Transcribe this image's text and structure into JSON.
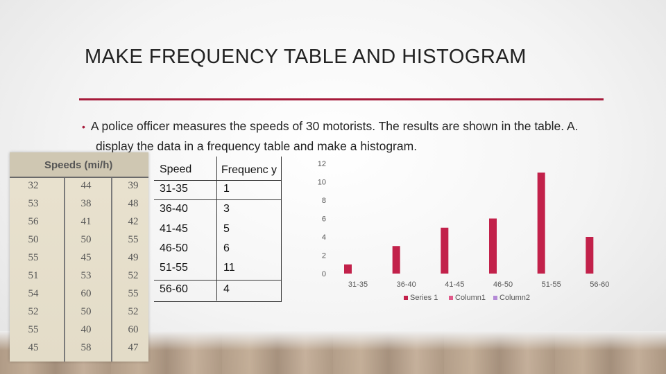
{
  "slide": {
    "title": "MAKE FREQUENCY TABLE AND HISTOGRAM",
    "bullet": "A police officer measures the speeds of 30 motorists.  The results are shown in the table.  A. display the data in a frequency table and make a histogram.",
    "accent_color": "#a61a3a"
  },
  "photo_table": {
    "header": "Speeds (mi/h)",
    "rows": [
      [
        "32",
        "44",
        "39"
      ],
      [
        "53",
        "38",
        "48"
      ],
      [
        "56",
        "41",
        "42"
      ],
      [
        "50",
        "50",
        "55"
      ],
      [
        "55",
        "45",
        "49"
      ],
      [
        "51",
        "53",
        "52"
      ],
      [
        "54",
        "60",
        "55"
      ],
      [
        "52",
        "50",
        "52"
      ],
      [
        "55",
        "40",
        "60"
      ],
      [
        "45",
        "58",
        "47"
      ]
    ]
  },
  "frequency_table": {
    "headers": [
      "Speed",
      "Frequenc y"
    ],
    "rows": [
      [
        "31-35",
        "1"
      ],
      [
        "36-40",
        "3"
      ],
      [
        "41-45",
        "5"
      ],
      [
        "46-50",
        "6"
      ],
      [
        "51-55",
        "11"
      ],
      [
        "56-60",
        "4"
      ]
    ]
  },
  "chart_data": {
    "type": "bar",
    "categories": [
      "31-35",
      "36-40",
      "41-45",
      "46-50",
      "51-55",
      "56-60"
    ],
    "series": [
      {
        "name": "Series 1",
        "values": [
          1,
          3,
          5,
          6,
          11,
          4
        ],
        "color": "#c2214a"
      },
      {
        "name": "Column1",
        "values": [
          0,
          0,
          0,
          0,
          0,
          0
        ],
        "color": "#e05a8a"
      },
      {
        "name": "Column2",
        "values": [
          0,
          0,
          0,
          0,
          0,
          0
        ],
        "color": "#b48ad6"
      }
    ],
    "y_ticks": [
      "0",
      "2",
      "4",
      "6",
      "8",
      "10",
      "12"
    ],
    "ylim": [
      0,
      12
    ],
    "title": "",
    "xlabel": "",
    "ylabel": "",
    "grid": false,
    "legend_position": "bottom"
  }
}
